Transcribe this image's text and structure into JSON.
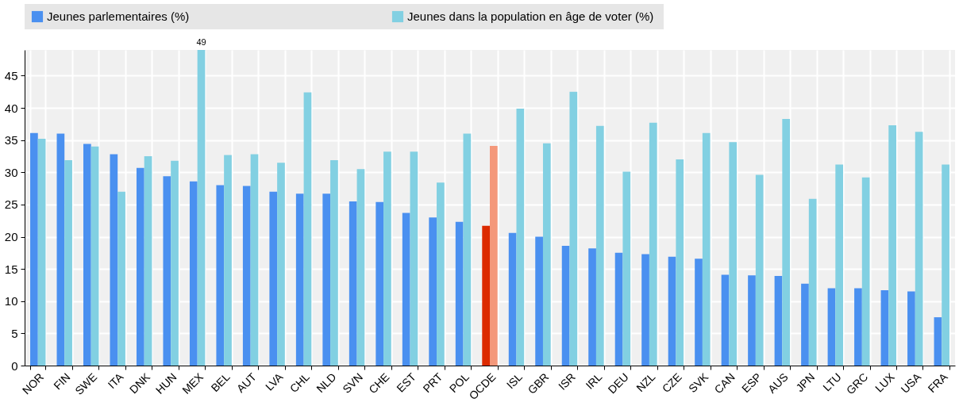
{
  "chart_data": {
    "type": "bar",
    "categories": [
      "NOR",
      "FIN",
      "SWE",
      "ITA",
      "DNK",
      "HUN",
      "MEX",
      "BEL",
      "AUT",
      "LVA",
      "CHL",
      "NLD",
      "SVN",
      "CHE",
      "EST",
      "PRT",
      "POL",
      "OCDE",
      "ISL",
      "GBR",
      "ISR",
      "IRL",
      "DEU",
      "NZL",
      "CZE",
      "SVK",
      "CAN",
      "ESP",
      "AUS",
      "JPN",
      "LTU",
      "GRC",
      "LUX",
      "USA",
      "FRA"
    ],
    "series": [
      {
        "name": "Jeunes parlementaires  (%)",
        "color": "#4a90f0",
        "colors": [
          "#4a90f0",
          "#4a90f0",
          "#4a90f0",
          "#4a90f0",
          "#4a90f0",
          "#4a90f0",
          "#4a90f0",
          "#4a90f0",
          "#4a90f0",
          "#4a90f0",
          "#4a90f0",
          "#4a90f0",
          "#4a90f0",
          "#4a90f0",
          "#4a90f0",
          "#4a90f0",
          "#4a90f0",
          "#dc2a00",
          "#4a90f0",
          "#4a90f0",
          "#4a90f0",
          "#4a90f0",
          "#4a90f0",
          "#4a90f0",
          "#4a90f0",
          "#4a90f0",
          "#4a90f0",
          "#4a90f0",
          "#4a90f0",
          "#4a90f0",
          "#4a90f0",
          "#4a90f0",
          "#4a90f0",
          "#4a90f0",
          "#4a90f0"
        ],
        "values": [
          36.1,
          36.0,
          34.4,
          32.8,
          30.7,
          29.4,
          28.6,
          28.0,
          27.9,
          27.0,
          26.7,
          26.7,
          25.5,
          25.4,
          23.7,
          23.0,
          22.3,
          21.7,
          20.6,
          20.0,
          18.6,
          18.2,
          17.5,
          17.3,
          16.9,
          16.6,
          14.1,
          14.0,
          13.9,
          12.7,
          12.0,
          12.0,
          11.7,
          11.5,
          7.5
        ]
      },
      {
        "name": "Jeunes dans la population en âge de voter  (%)",
        "color": "#82d0e2",
        "colors": [
          "#82d0e2",
          "#82d0e2",
          "#82d0e2",
          "#82d0e2",
          "#82d0e2",
          "#82d0e2",
          "#82d0e2",
          "#82d0e2",
          "#82d0e2",
          "#82d0e2",
          "#82d0e2",
          "#82d0e2",
          "#82d0e2",
          "#82d0e2",
          "#82d0e2",
          "#82d0e2",
          "#82d0e2",
          "#f4987a",
          "#82d0e2",
          "#82d0e2",
          "#82d0e2",
          "#82d0e2",
          "#82d0e2",
          "#82d0e2",
          "#82d0e2",
          "#82d0e2",
          "#82d0e2",
          "#82d0e2",
          "#82d0e2",
          "#82d0e2",
          "#82d0e2",
          "#82d0e2",
          "#82d0e2",
          "#82d0e2",
          "#82d0e2"
        ],
        "values": [
          35.2,
          31.9,
          34.0,
          27.0,
          32.5,
          31.8,
          49,
          32.7,
          32.8,
          31.5,
          42.4,
          31.9,
          30.5,
          33.2,
          33.2,
          28.4,
          36.0,
          34.1,
          39.9,
          34.5,
          42.5,
          37.2,
          30.1,
          37.7,
          32.0,
          36.1,
          34.7,
          29.6,
          38.3,
          25.9,
          31.2,
          29.2,
          37.3,
          36.3,
          31.2
        ],
        "value_labels": [
          null,
          null,
          null,
          null,
          null,
          null,
          "49",
          null,
          null,
          null,
          null,
          null,
          null,
          null,
          null,
          null,
          null,
          null,
          null,
          null,
          null,
          null,
          null,
          null,
          null,
          null,
          null,
          null,
          null,
          null,
          null,
          null,
          null,
          null,
          null
        ]
      }
    ],
    "ylim": [
      0,
      49
    ],
    "yticks": [
      0,
      5,
      10,
      15,
      20,
      25,
      30,
      35,
      40,
      45
    ],
    "grid": true,
    "legend": "top"
  }
}
